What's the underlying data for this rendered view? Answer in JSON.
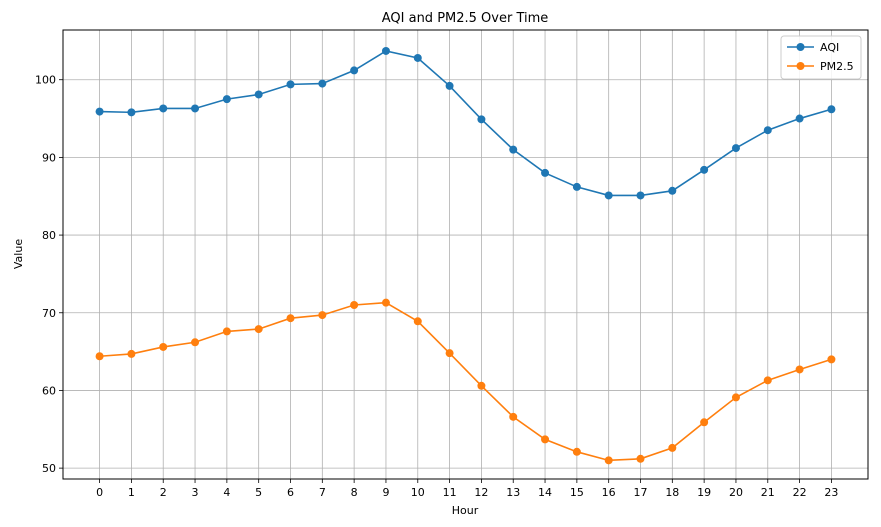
{
  "chart_data": {
    "type": "line",
    "title": "AQI and PM2.5 Over Time",
    "xlabel": "Hour",
    "ylabel": "Value",
    "x": [
      0,
      1,
      2,
      3,
      4,
      5,
      6,
      7,
      8,
      9,
      10,
      11,
      12,
      13,
      14,
      15,
      16,
      17,
      18,
      19,
      20,
      21,
      22,
      23
    ],
    "xticks": [
      "0",
      "1",
      "2",
      "3",
      "4",
      "5",
      "6",
      "7",
      "8",
      "9",
      "10",
      "11",
      "12",
      "13",
      "14",
      "15",
      "16",
      "17",
      "18",
      "19",
      "20",
      "21",
      "22",
      "23"
    ],
    "yticks": [
      "50",
      "60",
      "70",
      "80",
      "90",
      "100"
    ],
    "ylim": [
      48.6,
      106.4
    ],
    "xlim": [
      -1.15,
      24.15
    ],
    "grid": true,
    "legend_position": "top-right",
    "series": [
      {
        "name": "AQI",
        "color": "#1f77b4",
        "values": [
          95.9,
          95.8,
          96.3,
          96.3,
          97.5,
          98.1,
          99.4,
          99.5,
          101.2,
          103.7,
          102.8,
          99.2,
          94.9,
          91.0,
          88.0,
          86.2,
          85.1,
          85.1,
          85.7,
          88.4,
          91.2,
          93.5,
          95.0,
          96.2
        ]
      },
      {
        "name": "PM2.5",
        "color": "#ff7f0e",
        "values": [
          64.4,
          64.7,
          65.6,
          66.2,
          67.6,
          67.9,
          69.3,
          69.7,
          71.0,
          71.3,
          68.9,
          64.8,
          60.6,
          56.6,
          53.7,
          52.1,
          51.0,
          51.2,
          52.6,
          55.9,
          59.1,
          61.3,
          62.7,
          64.0
        ]
      }
    ]
  }
}
